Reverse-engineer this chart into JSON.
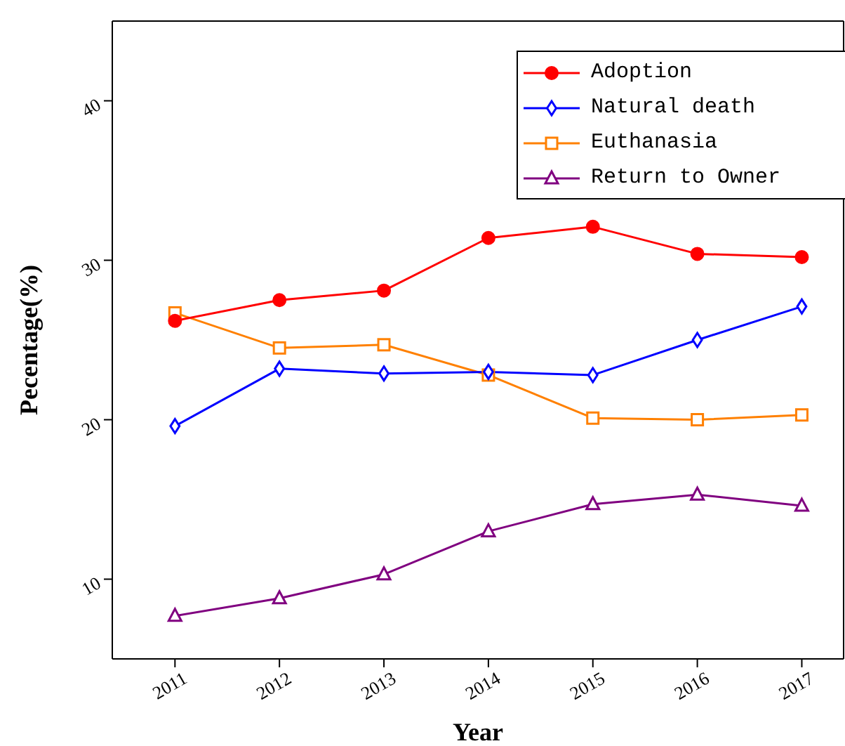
{
  "chart_data": {
    "type": "line",
    "xlabel": "Year",
    "ylabel": "Pecentage(%)",
    "x": [
      2011,
      2012,
      2013,
      2014,
      2015,
      2016,
      2017
    ],
    "xlim": [
      2010.4,
      2017.4
    ],
    "xticks": [
      2011,
      2012,
      2013,
      2014,
      2015,
      2016,
      2017
    ],
    "ylim": [
      5,
      45
    ],
    "yticks": [
      10,
      20,
      30,
      40
    ],
    "grid": false,
    "legend": "top right",
    "line_style": "solid",
    "series": [
      {
        "name": "Adoption",
        "color": "#ff0000",
        "marker": "circle",
        "values": [
          26.2,
          27.5,
          28.1,
          31.4,
          32.1,
          30.4,
          30.2
        ]
      },
      {
        "name": "Natural death",
        "color": "#0000ff",
        "marker": "diamond",
        "values": [
          19.6,
          23.2,
          22.9,
          23.0,
          22.8,
          25.0,
          27.1
        ]
      },
      {
        "name": "Euthanasia",
        "color": "#ff8000",
        "marker": "square",
        "values": [
          26.7,
          24.5,
          24.7,
          22.8,
          20.1,
          20.0,
          20.3
        ]
      },
      {
        "name": "Return to Owner",
        "color": "#800080",
        "marker": "triangle",
        "values": [
          7.7,
          8.8,
          10.3,
          13.0,
          14.7,
          15.3,
          14.6
        ]
      }
    ]
  }
}
